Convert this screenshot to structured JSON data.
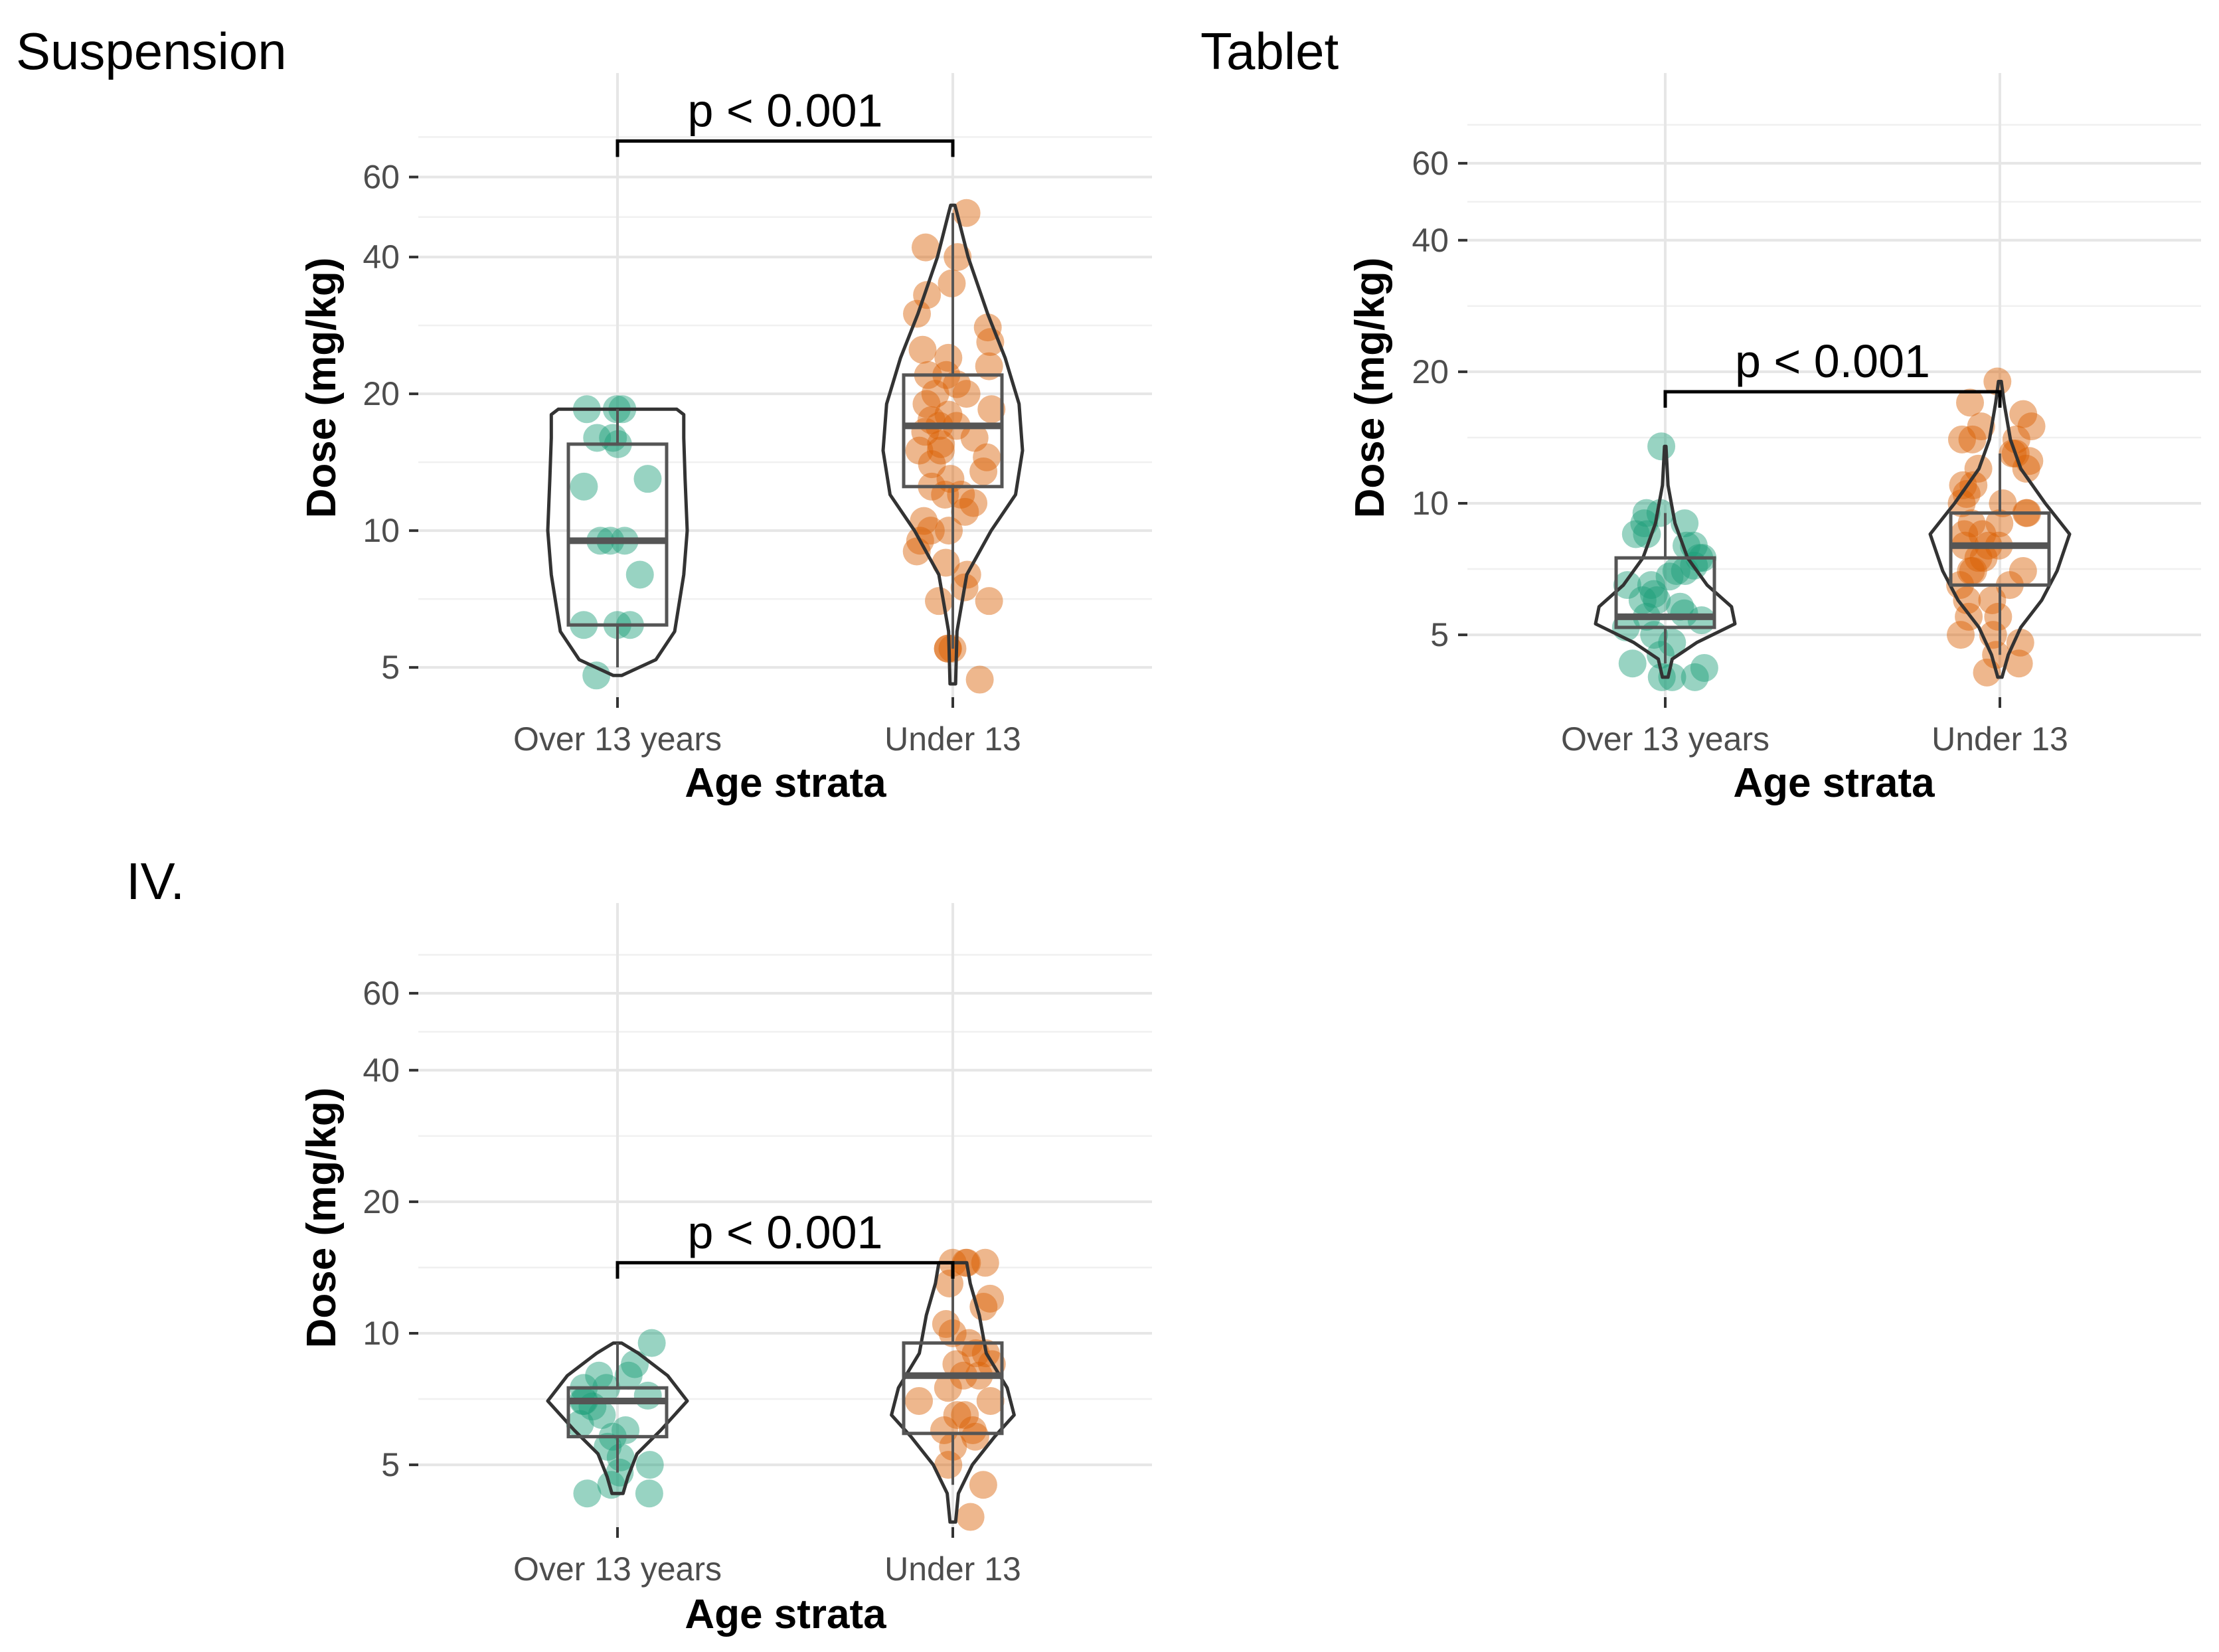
{
  "colors": {
    "over13": "#1b9e77",
    "under13": "#d95f02"
  },
  "chart_data": [
    {
      "type": "violin-box",
      "title": "Suspension",
      "xlabel": "Age strata",
      "ylabel": "Dose (mg/kg)",
      "yscale": "log",
      "ylim": [
        4.3,
        95
      ],
      "yticks": [
        5,
        10,
        20,
        40,
        60
      ],
      "categories": [
        "Over 13 years",
        "Under 13"
      ],
      "pvalue_label": "p < 0.001",
      "bracket_y": 72,
      "groups": [
        {
          "name": "Over 13 years",
          "color_key": "over13",
          "box": {
            "q1": 6.2,
            "median": 9.5,
            "q3": 15.5,
            "min": 5.0,
            "max": 18.5
          },
          "violin": {
            "bottom": 4.8,
            "top": 18.5,
            "profile": [
              [
                4.8,
                0.06
              ],
              [
                5.2,
                0.55
              ],
              [
                6,
                0.82
              ],
              [
                8,
                0.95
              ],
              [
                10,
                1.0
              ],
              [
                13,
                0.97
              ],
              [
                16,
                0.95
              ],
              [
                18,
                0.95
              ],
              [
                18.5,
                0.85
              ]
            ]
          },
          "points": [
            18.5,
            18.5,
            18.5,
            16,
            16,
            15.5,
            12.5,
            13,
            9.5,
            9.5,
            9.5,
            8,
            6.2,
            6.2,
            6.2,
            4.8
          ]
        },
        {
          "name": "Under 13",
          "color_key": "under13",
          "box": {
            "q1": 12.5,
            "median": 17,
            "q3": 22,
            "min": 5.5,
            "max": 50
          },
          "violin": {
            "bottom": 4.6,
            "top": 52,
            "profile": [
              [
                4.6,
                0.04
              ],
              [
                6,
                0.06
              ],
              [
                8,
                0.2
              ],
              [
                10,
                0.55
              ],
              [
                12,
                0.9
              ],
              [
                15,
                1.0
              ],
              [
                19,
                0.95
              ],
              [
                24,
                0.75
              ],
              [
                30,
                0.5
              ],
              [
                40,
                0.22
              ],
              [
                50,
                0.06
              ],
              [
                52,
                0.03
              ]
            ]
          },
          "points": [
            50,
            42,
            40,
            35,
            33,
            30,
            28,
            26,
            25,
            24,
            23,
            22,
            22,
            21,
            20,
            20,
            19,
            18.5,
            18,
            17.5,
            17,
            17,
            16.5,
            16,
            15.5,
            15,
            15,
            14.5,
            14,
            13.5,
            13,
            12.5,
            12,
            12,
            11.5,
            11,
            10.5,
            10,
            10,
            9.5,
            9,
            8.5,
            8,
            7.5,
            7,
            7,
            5.5,
            5.5,
            5.5,
            4.7
          ]
        }
      ]
    },
    {
      "type": "violin-box",
      "title": "Tablet",
      "xlabel": "Age strata",
      "ylabel": "Dose (mg/kg)",
      "yscale": "log",
      "ylim": [
        3.6,
        90
      ],
      "yticks": [
        5,
        10,
        20,
        40,
        60
      ],
      "categories": [
        "Over 13 years",
        "Under 13"
      ],
      "pvalue_label": "p < 0.001",
      "bracket_y": 18,
      "groups": [
        {
          "name": "Over 13 years",
          "color_key": "over13",
          "box": {
            "q1": 5.2,
            "median": 5.5,
            "q3": 7.5,
            "min": 4.3,
            "max": 9.5
          },
          "violin": {
            "bottom": 4.0,
            "top": 13.5,
            "profile": [
              [
                4.0,
                0.04
              ],
              [
                4.4,
                0.1
              ],
              [
                4.8,
                0.45
              ],
              [
                5.3,
                1.0
              ],
              [
                5.8,
                0.95
              ],
              [
                6.5,
                0.6
              ],
              [
                7.5,
                0.32
              ],
              [
                9,
                0.14
              ],
              [
                11,
                0.04
              ],
              [
                13.5,
                0.01
              ]
            ]
          },
          "points": [
            13.5,
            9.5,
            9.5,
            9,
            9,
            8.5,
            8.5,
            8,
            8,
            7.5,
            7.5,
            7.2,
            7,
            7,
            6.8,
            6.5,
            6.5,
            6.2,
            6,
            6,
            5.8,
            5.6,
            5.5,
            5.4,
            5.2,
            5,
            4.8,
            4.5,
            4.3,
            4.2,
            4.0,
            4.0,
            4.0
          ]
        },
        {
          "name": "Under 13",
          "color_key": "under13",
          "box": {
            "q1": 6.5,
            "median": 8.0,
            "q3": 9.5,
            "min": 4.5,
            "max": 13
          },
          "violin": {
            "bottom": 4.0,
            "top": 19,
            "profile": [
              [
                4.0,
                0.03
              ],
              [
                4.5,
                0.12
              ],
              [
                5.2,
                0.3
              ],
              [
                6,
                0.6
              ],
              [
                7,
                0.82
              ],
              [
                8.5,
                1.0
              ],
              [
                10,
                0.65
              ],
              [
                12,
                0.3
              ],
              [
                14,
                0.15
              ],
              [
                17,
                0.06
              ],
              [
                19,
                0.02
              ]
            ]
          },
          "points": [
            19,
            17,
            16,
            15,
            15,
            14,
            14,
            14,
            13,
            13,
            12.5,
            12,
            12,
            11,
            11,
            10.5,
            10,
            10,
            9.5,
            9.5,
            9,
            9,
            8.5,
            8.5,
            8,
            8,
            8,
            7.5,
            7.5,
            7,
            7,
            7,
            6.5,
            6.5,
            6,
            6,
            5.5,
            5.5,
            5,
            5,
            4.8,
            4.5,
            4.3,
            4.1
          ]
        }
      ]
    },
    {
      "type": "violin-box",
      "title": "IV.",
      "xlabel": "Age strata",
      "ylabel": "Dose (mg/kg)",
      "yscale": "log",
      "ylim": [
        3.6,
        90
      ],
      "yticks": [
        5,
        10,
        20,
        40,
        60
      ],
      "categories": [
        "Over 13 years",
        "Under 13"
      ],
      "pvalue_label": "p < 0.001",
      "bracket_y": 14.5,
      "groups": [
        {
          "name": "Over 13 years",
          "color_key": "over13",
          "box": {
            "q1": 5.8,
            "median": 7.0,
            "q3": 7.5,
            "min": 4.8,
            "max": 9.5
          },
          "violin": {
            "bottom": 4.3,
            "top": 9.5,
            "profile": [
              [
                4.3,
                0.08
              ],
              [
                4.7,
                0.15
              ],
              [
                5.3,
                0.28
              ],
              [
                6,
                0.62
              ],
              [
                7,
                1.0
              ],
              [
                8,
                0.72
              ],
              [
                9,
                0.3
              ],
              [
                9.5,
                0.06
              ]
            ]
          },
          "points": [
            9.5,
            8.5,
            8,
            8,
            7.5,
            7.5,
            7.2,
            7,
            7,
            6.8,
            6.5,
            6.2,
            6,
            5.8,
            5.5,
            5.2,
            5,
            4.8,
            4.5,
            4.3,
            4.3
          ]
        },
        {
          "name": "Under 13",
          "color_key": "under13",
          "box": {
            "q1": 5.9,
            "median": 8.0,
            "q3": 9.5,
            "min": 4.5,
            "max": 14.5
          },
          "violin": {
            "bottom": 3.7,
            "top": 14.5,
            "profile": [
              [
                3.7,
                0.04
              ],
              [
                4.3,
                0.08
              ],
              [
                5,
                0.28
              ],
              [
                5.8,
                0.6
              ],
              [
                6.5,
                0.88
              ],
              [
                7.5,
                0.78
              ],
              [
                9,
                0.48
              ],
              [
                11,
                0.38
              ],
              [
                13,
                0.25
              ],
              [
                14.5,
                0.2
              ]
            ]
          },
          "points": [
            14.5,
            14.5,
            14.5,
            14.5,
            13,
            12,
            11.5,
            10.5,
            10,
            9.5,
            9,
            9,
            8.5,
            8.5,
            8,
            8,
            7.5,
            7,
            7,
            6.5,
            6.5,
            6,
            6,
            5.8,
            5.5,
            5,
            4.5,
            3.8
          ]
        }
      ]
    }
  ]
}
